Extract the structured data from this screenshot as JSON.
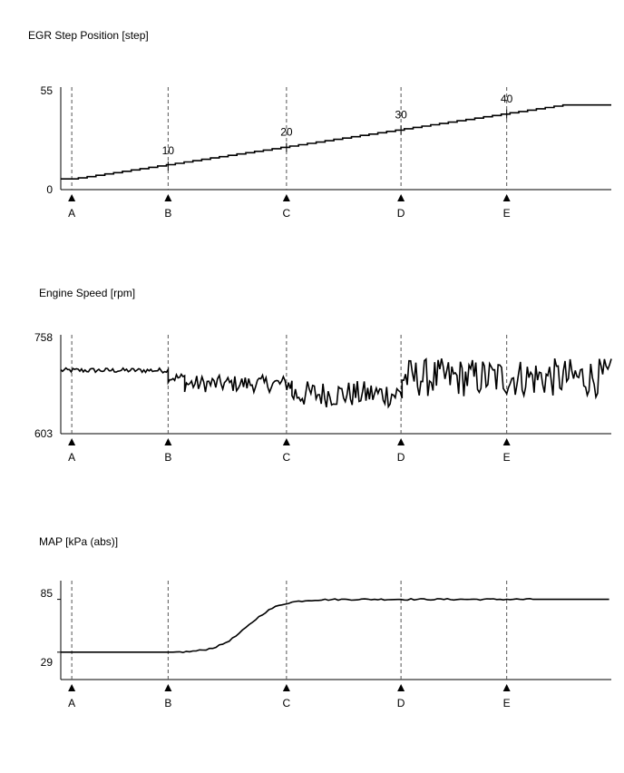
{
  "chart_data": [
    {
      "type": "line",
      "title": "EGR Step Position [step]",
      "ylim": [
        0,
        55
      ],
      "yticks": [
        "55",
        "0"
      ],
      "x_range": [
        0,
        100
      ],
      "markers": [
        {
          "label": "A",
          "x": 2
        },
        {
          "label": "B",
          "x": 19.5
        },
        {
          "label": "C",
          "x": 41
        },
        {
          "label": "D",
          "x": 61.8
        },
        {
          "label": "E",
          "x": 81
        }
      ],
      "annotations": [
        {
          "text": "10",
          "x": 19.5
        },
        {
          "text": "20",
          "x": 41
        },
        {
          "text": "30",
          "x": 61.8
        },
        {
          "text": "40",
          "x": 81
        }
      ],
      "kind": "ramp",
      "series": {
        "start_value": 6,
        "end_value": 47.5,
        "plateau_x": 91,
        "step_x": 1.6
      }
    },
    {
      "type": "line",
      "title": "Engine Speed [rpm]",
      "ylim": [
        603,
        758
      ],
      "yticks": [
        "758",
        "603"
      ],
      "x_range": [
        0,
        100
      ],
      "markers": [
        {
          "label": "A",
          "x": 2
        },
        {
          "label": "B",
          "x": 19.5
        },
        {
          "label": "C",
          "x": 41
        },
        {
          "label": "D",
          "x": 61.8
        },
        {
          "label": "E",
          "x": 81
        }
      ],
      "annotations": [],
      "kind": "noise",
      "series": {
        "segments": [
          {
            "x0": 0,
            "x1": 19.5,
            "mean": 707,
            "amp": 4
          },
          {
            "x0": 19.5,
            "x1": 22.5,
            "mean": 695,
            "amp": 8
          },
          {
            "x0": 22.5,
            "x1": 42,
            "mean": 685,
            "amp": 14
          },
          {
            "x0": 42,
            "x1": 62,
            "mean": 668,
            "amp": 22
          },
          {
            "x0": 62,
            "x1": 100,
            "mean": 695,
            "amp": 32
          }
        ]
      }
    },
    {
      "type": "line",
      "title": "MAP [kPa (abs)]",
      "ylim": [
        0,
        100
      ],
      "yticks": [
        "85",
        "29"
      ],
      "ytick_values": [
        85,
        29
      ],
      "x_range": [
        0,
        100
      ],
      "markers": [
        {
          "label": "A",
          "x": 2
        },
        {
          "label": "B",
          "x": 19.5
        },
        {
          "label": "C",
          "x": 41
        },
        {
          "label": "D",
          "x": 61.8
        },
        {
          "label": "E",
          "x": 81
        }
      ],
      "annotations": [],
      "kind": "sigmoid",
      "series": {
        "low": 29,
        "high": 85,
        "rise_start_x": 21,
        "mid_x": 34,
        "rate": 0.12
      }
    }
  ]
}
